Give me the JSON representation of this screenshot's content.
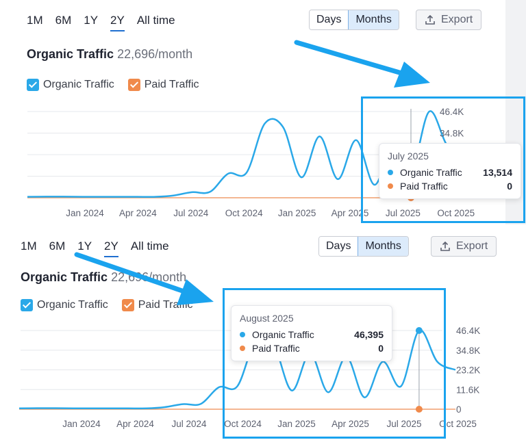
{
  "periods": [
    "1M",
    "6M",
    "1Y",
    "2Y",
    "All time"
  ],
  "active_period": "2Y",
  "view_toggle": {
    "days": "Days",
    "months": "Months",
    "active": "Months"
  },
  "export_label": "Export",
  "metric": {
    "label": "Organic Traffic",
    "value": "22,696/month"
  },
  "legend": [
    {
      "name": "Organic Traffic",
      "color": "#2aa8e8"
    },
    {
      "name": "Paid Traffic",
      "color": "#f08a4b"
    }
  ],
  "colors": {
    "organic": "#2aa8e8",
    "paid": "#f08a4b",
    "highlight": "#1aa3ee",
    "arrow": "#1aa3ee"
  },
  "tooltip_top": {
    "title": "July 2025",
    "rows": [
      {
        "name": "Organic Traffic",
        "value": "13,514"
      },
      {
        "name": "Paid Traffic",
        "value": "0"
      }
    ]
  },
  "tooltip_bottom": {
    "title": "August 2025",
    "rows": [
      {
        "name": "Organic Traffic",
        "value": "46,395"
      },
      {
        "name": "Paid Traffic",
        "value": "0"
      }
    ]
  },
  "chart_data": {
    "type": "line",
    "x_tick_labels": [
      "Jan 2024",
      "Apr 2024",
      "Jul 2024",
      "Oct 2024",
      "Jan 2025",
      "Apr 2025",
      "Jul 2025",
      "Oct 2025"
    ],
    "y_tick_labels": [
      "0",
      "11.6K",
      "23.2K",
      "34.8K",
      "46.4K"
    ],
    "ylim": [
      0,
      46400
    ],
    "x": [
      "2023-10",
      "2023-11",
      "2023-12",
      "2024-01",
      "2024-02",
      "2024-03",
      "2024-04",
      "2024-05",
      "2024-06",
      "2024-07",
      "2024-08",
      "2024-09",
      "2024-10",
      "2024-11",
      "2024-12",
      "2025-01",
      "2025-02",
      "2025-03",
      "2025-04",
      "2025-05",
      "2025-06",
      "2025-07",
      "2025-08",
      "2025-09",
      "2025-10"
    ],
    "series": [
      {
        "name": "Organic Traffic",
        "values": [
          500,
          600,
          600,
          500,
          500,
          500,
          500,
          500,
          1200,
          3000,
          3200,
          13000,
          13500,
          40000,
          38000,
          11000,
          33000,
          10000,
          31000,
          7000,
          28000,
          13514,
          46395,
          28000,
          23200
        ]
      },
      {
        "name": "Paid Traffic",
        "values": [
          0,
          0,
          0,
          0,
          0,
          0,
          0,
          0,
          0,
          0,
          0,
          0,
          0,
          0,
          0,
          0,
          0,
          0,
          0,
          0,
          0,
          0,
          0,
          0,
          0
        ]
      }
    ],
    "grid": true,
    "legend_position": "top-left"
  }
}
